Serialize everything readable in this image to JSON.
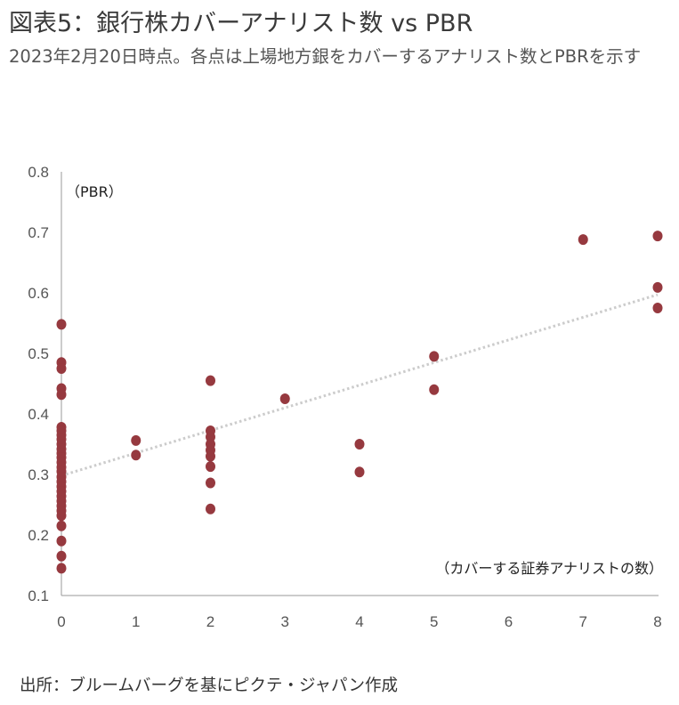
{
  "header": {
    "title": "図表5：銀行株カバーアナリスト数 vs PBR",
    "subtitle": "2023年2月20日時点。各点は上場地方銀をカバーするアナリスト数とPBRを示す"
  },
  "footer": {
    "source": "出所：ブルームバーグを基にピクテ・ジャパン作成"
  },
  "chart_data": {
    "type": "scatter",
    "title": "図表5：銀行株カバーアナリスト数 vs PBR",
    "xlabel": "（カバーする証券アナリストの数）",
    "ylabel": "（PBR）",
    "xlim": [
      0,
      8
    ],
    "ylim": [
      0.1,
      0.8
    ],
    "x_ticks": [
      "0",
      "1",
      "2",
      "3",
      "4",
      "5",
      "6",
      "7",
      "8"
    ],
    "y_ticks": [
      "0.1",
      "0.2",
      "0.3",
      "0.4",
      "0.5",
      "0.6",
      "0.7",
      "0.8"
    ],
    "grid": false,
    "marker_color": "#96393f",
    "trendline": {
      "style": "dotted",
      "color": "#cccccc",
      "start": [
        0,
        0.298
      ],
      "end": [
        8,
        0.597
      ]
    },
    "points": [
      {
        "x": 0,
        "y": 0.548
      },
      {
        "x": 0,
        "y": 0.485
      },
      {
        "x": 0,
        "y": 0.475
      },
      {
        "x": 0,
        "y": 0.442
      },
      {
        "x": 0,
        "y": 0.432
      },
      {
        "x": 0,
        "y": 0.378
      },
      {
        "x": 0,
        "y": 0.372
      },
      {
        "x": 0,
        "y": 0.365
      },
      {
        "x": 0,
        "y": 0.358
      },
      {
        "x": 0,
        "y": 0.35
      },
      {
        "x": 0,
        "y": 0.342
      },
      {
        "x": 0,
        "y": 0.335
      },
      {
        "x": 0,
        "y": 0.328
      },
      {
        "x": 0,
        "y": 0.32
      },
      {
        "x": 0,
        "y": 0.312
      },
      {
        "x": 0,
        "y": 0.305
      },
      {
        "x": 0,
        "y": 0.296
      },
      {
        "x": 0,
        "y": 0.288
      },
      {
        "x": 0,
        "y": 0.28
      },
      {
        "x": 0,
        "y": 0.272
      },
      {
        "x": 0,
        "y": 0.264
      },
      {
        "x": 0,
        "y": 0.256
      },
      {
        "x": 0,
        "y": 0.248
      },
      {
        "x": 0,
        "y": 0.24
      },
      {
        "x": 0,
        "y": 0.232
      },
      {
        "x": 0,
        "y": 0.215
      },
      {
        "x": 0,
        "y": 0.19
      },
      {
        "x": 0,
        "y": 0.165
      },
      {
        "x": 0,
        "y": 0.145
      },
      {
        "x": 1,
        "y": 0.356
      },
      {
        "x": 1,
        "y": 0.332
      },
      {
        "x": 2,
        "y": 0.455
      },
      {
        "x": 2,
        "y": 0.372
      },
      {
        "x": 2,
        "y": 0.362
      },
      {
        "x": 2,
        "y": 0.35
      },
      {
        "x": 2,
        "y": 0.34
      },
      {
        "x": 2,
        "y": 0.33
      },
      {
        "x": 2,
        "y": 0.313
      },
      {
        "x": 2,
        "y": 0.286
      },
      {
        "x": 2,
        "y": 0.243
      },
      {
        "x": 3,
        "y": 0.425
      },
      {
        "x": 4,
        "y": 0.35
      },
      {
        "x": 4,
        "y": 0.304
      },
      {
        "x": 5,
        "y": 0.495
      },
      {
        "x": 5,
        "y": 0.44
      },
      {
        "x": 7,
        "y": 0.688
      },
      {
        "x": 8,
        "y": 0.694
      },
      {
        "x": 8,
        "y": 0.609
      },
      {
        "x": 8,
        "y": 0.575
      }
    ]
  }
}
